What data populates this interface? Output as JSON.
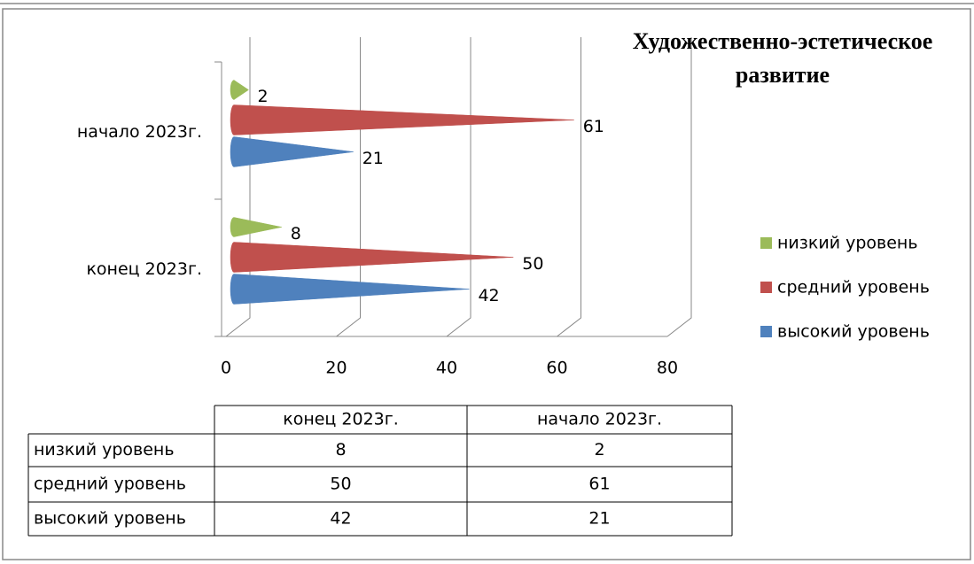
{
  "chart_data": {
    "type": "bar",
    "title": "Художественно-эстетическое развитие",
    "categories": [
      "конец 2023г.",
      "начало 2023г."
    ],
    "series": [
      {
        "name": "низкий уровень",
        "color": "#9bbb59",
        "values": [
          8,
          2
        ]
      },
      {
        "name": "средний уровень",
        "color": "#c0504d",
        "values": [
          50,
          61
        ]
      },
      {
        "name": "высокий уровень",
        "color": "#4f81bd",
        "values": [
          42,
          21
        ]
      }
    ],
    "xlim": [
      0,
      80
    ],
    "xticks": [
      0,
      20,
      40,
      60,
      80
    ],
    "grid": true,
    "legend": "right",
    "data_table": true
  }
}
